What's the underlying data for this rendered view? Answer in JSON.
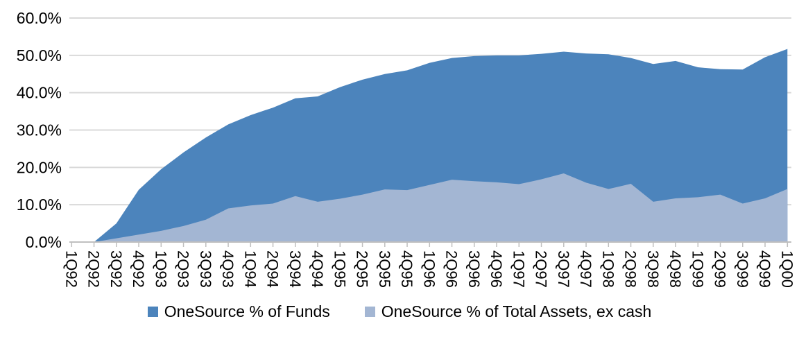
{
  "chart_data": {
    "type": "area",
    "overlap": true,
    "title": "",
    "xlabel": "",
    "ylabel": "",
    "categories": [
      "1Q92",
      "2Q92",
      "3Q92",
      "4Q92",
      "1Q93",
      "2Q93",
      "3Q93",
      "4Q93",
      "1Q94",
      "2Q94",
      "3Q94",
      "4Q94",
      "1Q95",
      "2Q95",
      "3Q95",
      "4Q95",
      "1Q96",
      "2Q96",
      "3Q96",
      "4Q96",
      "1Q97",
      "2Q97",
      "3Q97",
      "4Q97",
      "1Q98",
      "2Q98",
      "3Q98",
      "4Q98",
      "1Q99",
      "2Q99",
      "3Q99",
      "4Q99",
      "1Q00"
    ],
    "series": [
      {
        "name": "OneSource % of Funds",
        "color": "#4C84BC",
        "values": [
          0,
          0,
          5,
          14,
          19.5,
          24,
          28,
          31.5,
          34,
          36,
          38.5,
          39,
          41.5,
          43.5,
          45,
          46,
          48,
          49.3,
          49.8,
          50,
          50,
          50.4,
          51,
          50.5,
          50.3,
          49.3,
          47.7,
          48.5,
          46.8,
          46.3,
          46.2,
          49.5,
          51.7
        ]
      },
      {
        "name": "OneSource % of Total Assets, ex cash",
        "color": "#A3B6D3",
        "values": [
          0,
          0,
          1,
          2,
          3,
          4.3,
          6,
          9,
          9.8,
          10.3,
          12.3,
          10.8,
          11.6,
          12.7,
          14.1,
          13.9,
          15.3,
          16.7,
          16.3,
          16,
          15.5,
          16.8,
          18.4,
          15.9,
          14.2,
          15.6,
          10.8,
          11.7,
          12,
          12.7,
          10.3,
          11.7,
          14.2
        ]
      }
    ],
    "y_axis": {
      "tick_labels": [
        "0.0%",
        "10.0%",
        "20.0%",
        "30.0%",
        "40.0%",
        "50.0%",
        "60.0%"
      ],
      "tick_values": [
        0,
        10,
        20,
        30,
        40,
        50,
        60
      ],
      "ylim": [
        0,
        60
      ]
    },
    "x_axis": {
      "label_rotation_deg": 90
    },
    "legend": {
      "position": "bottom"
    },
    "style": {
      "grid_color": "#D9D9D9",
      "axis_color": "#BFBFBF",
      "text_color": "#000000",
      "background": "#FFFFFF"
    }
  }
}
